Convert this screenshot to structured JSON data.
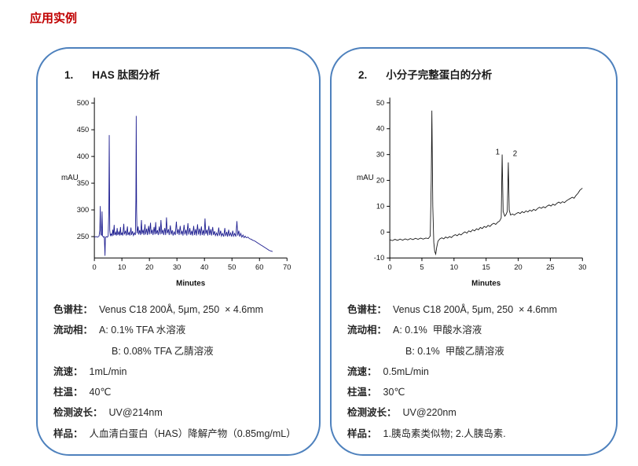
{
  "page": {
    "title": "应用实例",
    "title_color": "#c00000",
    "panel_border_color": "#4e81bd"
  },
  "panels": [
    {
      "number": "1.",
      "title": "HAS 肽图分析",
      "specs": [
        {
          "label": "色谱柱：",
          "value": "Venus C18 200Å, 5μm, 250  × 4.6mm",
          "indent": false
        },
        {
          "label": "流动相：",
          "value": "A: 0.1% TFA 水溶液",
          "indent": false
        },
        {
          "label": "",
          "value": "B: 0.08% TFA 乙腈溶液",
          "indent": true
        },
        {
          "label": "流速：",
          "value": "1mL/min",
          "indent": false
        },
        {
          "label": "柱温：",
          "value": "40℃",
          "indent": false
        },
        {
          "label": "检测波长：",
          "value": "UV@214nm",
          "indent": false
        },
        {
          "label": "样品：",
          "value": "人血清白蛋白（HAS）降解产物（0.85mg/mL）",
          "indent": false
        }
      ]
    },
    {
      "number": "2.",
      "title": "小分子完整蛋白的分析",
      "specs": [
        {
          "label": "色谱柱：",
          "value": "Venus C18 200Å, 5μm, 250  × 4.6mm",
          "indent": false
        },
        {
          "label": "流动相：",
          "value": "A: 0.1%  甲酸水溶液",
          "indent": false
        },
        {
          "label": "",
          "value": "B: 0.1%  甲酸乙腈溶液",
          "indent": true
        },
        {
          "label": "流速：",
          "value": "0.5mL/min",
          "indent": false
        },
        {
          "label": "柱温：",
          "value": "30℃",
          "indent": false
        },
        {
          "label": "检测波长：",
          "value": "UV@220nm",
          "indent": false
        },
        {
          "label": "样品：",
          "value": "1.胰岛素类似物; 2.人胰岛素.",
          "indent": false
        }
      ]
    }
  ],
  "chart_data": [
    {
      "type": "line",
      "title": "",
      "xlabel": "Minutes",
      "ylabel": "mAU",
      "xlim": [
        0,
        70
      ],
      "ylim": [
        210,
        510
      ],
      "xticks": [
        0,
        10,
        20,
        30,
        40,
        50,
        60,
        70
      ],
      "yticks": [
        250,
        300,
        350,
        400,
        450,
        500
      ],
      "grid": false,
      "line_color": "#1c1c8f",
      "points": [
        [
          0,
          249
        ],
        [
          0.6,
          250
        ],
        [
          1.2,
          249
        ],
        [
          1.7,
          251
        ],
        [
          2.0,
          262
        ],
        [
          2.15,
          307
        ],
        [
          2.3,
          255
        ],
        [
          2.6,
          252
        ],
        [
          2.8,
          297
        ],
        [
          3.0,
          251
        ],
        [
          3.3,
          249
        ],
        [
          3.6,
          250
        ],
        [
          3.85,
          214
        ],
        [
          4.0,
          248
        ],
        [
          4.3,
          250
        ],
        [
          4.7,
          249
        ],
        [
          5.0,
          251
        ],
        [
          5.25,
          300
        ],
        [
          5.4,
          440
        ],
        [
          5.6,
          262
        ],
        [
          5.8,
          252
        ],
        [
          6.1,
          255
        ],
        [
          6.4,
          251
        ],
        [
          6.7,
          263
        ],
        [
          6.9,
          252
        ],
        [
          7.2,
          272
        ],
        [
          7.4,
          253
        ],
        [
          7.7,
          258
        ],
        [
          8.0,
          252
        ],
        [
          8.3,
          266
        ],
        [
          8.5,
          253
        ],
        [
          8.9,
          259
        ],
        [
          9.2,
          252
        ],
        [
          9.5,
          268
        ],
        [
          9.7,
          253
        ],
        [
          10.0,
          257
        ],
        [
          10.3,
          252
        ],
        [
          10.7,
          274
        ],
        [
          10.9,
          254
        ],
        [
          11.3,
          261
        ],
        [
          11.6,
          252
        ],
        [
          12.0,
          269
        ],
        [
          12.2,
          253
        ],
        [
          12.6,
          258
        ],
        [
          12.9,
          252
        ],
        [
          13.3,
          267
        ],
        [
          13.5,
          253
        ],
        [
          13.9,
          260
        ],
        [
          14.2,
          252
        ],
        [
          14.6,
          257
        ],
        [
          14.9,
          253
        ],
        [
          15.1,
          320
        ],
        [
          15.2,
          476
        ],
        [
          15.35,
          300
        ],
        [
          15.5,
          256
        ],
        [
          15.9,
          269
        ],
        [
          16.1,
          254
        ],
        [
          16.5,
          262
        ],
        [
          16.8,
          253
        ],
        [
          17.1,
          281
        ],
        [
          17.3,
          255
        ],
        [
          17.7,
          263
        ],
        [
          18.0,
          253
        ],
        [
          18.4,
          273
        ],
        [
          18.6,
          254
        ],
        [
          19.0,
          265
        ],
        [
          19.3,
          253
        ],
        [
          19.7,
          270
        ],
        [
          20.0,
          254
        ],
        [
          20.4,
          276
        ],
        [
          20.6,
          255
        ],
        [
          21.0,
          263
        ],
        [
          21.3,
          253
        ],
        [
          21.7,
          268
        ],
        [
          22.0,
          254
        ],
        [
          22.3,
          277
        ],
        [
          22.5,
          255
        ],
        [
          22.9,
          262
        ],
        [
          23.2,
          253
        ],
        [
          23.6,
          269
        ],
        [
          23.9,
          254
        ],
        [
          24.2,
          281
        ],
        [
          24.5,
          255
        ],
        [
          24.9,
          263
        ],
        [
          25.2,
          253
        ],
        [
          25.6,
          266
        ],
        [
          25.9,
          253
        ],
        [
          26.2,
          286
        ],
        [
          26.5,
          256
        ],
        [
          26.9,
          264
        ],
        [
          27.2,
          253
        ],
        [
          27.6,
          271
        ],
        [
          27.9,
          254
        ],
        [
          28.3,
          262
        ],
        [
          28.6,
          252
        ],
        [
          29.0,
          259
        ],
        [
          29.4,
          253
        ],
        [
          29.8,
          278
        ],
        [
          30.1,
          255
        ],
        [
          30.5,
          264
        ],
        [
          30.8,
          253
        ],
        [
          31.2,
          270
        ],
        [
          31.5,
          254
        ],
        [
          31.9,
          261
        ],
        [
          32.2,
          252
        ],
        [
          32.6,
          272
        ],
        [
          32.9,
          254
        ],
        [
          33.3,
          263
        ],
        [
          33.6,
          252
        ],
        [
          34.0,
          275
        ],
        [
          34.3,
          254
        ],
        [
          34.7,
          266
        ],
        [
          35.0,
          253
        ],
        [
          35.4,
          261
        ],
        [
          35.7,
          252
        ],
        [
          36.1,
          270
        ],
        [
          36.4,
          253
        ],
        [
          36.8,
          264
        ],
        [
          37.1,
          252
        ],
        [
          37.5,
          273
        ],
        [
          37.8,
          254
        ],
        [
          38.2,
          265
        ],
        [
          38.5,
          252
        ],
        [
          38.9,
          269
        ],
        [
          39.2,
          253
        ],
        [
          39.6,
          262
        ],
        [
          39.9,
          252
        ],
        [
          40.2,
          284
        ],
        [
          40.5,
          255
        ],
        [
          40.9,
          263
        ],
        [
          41.2,
          252
        ],
        [
          41.6,
          270
        ],
        [
          41.9,
          253
        ],
        [
          42.3,
          264
        ],
        [
          42.6,
          252
        ],
        [
          43.0,
          268
        ],
        [
          43.3,
          253
        ],
        [
          43.7,
          260
        ],
        [
          44.0,
          252
        ],
        [
          44.4,
          257
        ],
        [
          44.8,
          251
        ],
        [
          45.2,
          267
        ],
        [
          45.5,
          252
        ],
        [
          45.9,
          261
        ],
        [
          46.2,
          251
        ],
        [
          46.6,
          256
        ],
        [
          47.0,
          250
        ],
        [
          47.4,
          266
        ],
        [
          47.7,
          251
        ],
        [
          48.1,
          259
        ],
        [
          48.4,
          250
        ],
        [
          48.8,
          263
        ],
        [
          49.1,
          251
        ],
        [
          49.5,
          257
        ],
        [
          49.9,
          250
        ],
        [
          50.3,
          261
        ],
        [
          50.6,
          251
        ],
        [
          51.0,
          256
        ],
        [
          51.4,
          250
        ],
        [
          51.8,
          279
        ],
        [
          52.1,
          252
        ],
        [
          52.5,
          261
        ],
        [
          52.8,
          250
        ],
        [
          53.2,
          256
        ],
        [
          53.6,
          249
        ],
        [
          54.0,
          253
        ],
        [
          54.4,
          248
        ],
        [
          54.8,
          251
        ],
        [
          55.2,
          248
        ],
        [
          55.8,
          249
        ],
        [
          56.4,
          246
        ],
        [
          57.0,
          245
        ],
        [
          57.6,
          243
        ],
        [
          58.2,
          242
        ],
        [
          58.8,
          240
        ],
        [
          59.4,
          238
        ],
        [
          60.0,
          236
        ],
        [
          60.6,
          234
        ],
        [
          61.2,
          232
        ],
        [
          61.8,
          230
        ],
        [
          62.4,
          228
        ],
        [
          63.0,
          226
        ],
        [
          63.6,
          224
        ],
        [
          64.2,
          223
        ],
        [
          64.8,
          222
        ]
      ]
    },
    {
      "type": "line",
      "title": "",
      "xlabel": "Minutes",
      "ylabel": "mAU",
      "xlim": [
        0,
        30
      ],
      "ylim": [
        -10,
        52
      ],
      "xticks": [
        0,
        5,
        10,
        15,
        20,
        25,
        30
      ],
      "yticks": [
        -10,
        0,
        10,
        20,
        30,
        40,
        50
      ],
      "grid": false,
      "line_color": "#141414",
      "annotations": [
        {
          "text": "1",
          "x": 16.8,
          "y": 30
        },
        {
          "text": "2",
          "x": 19.5,
          "y": 29.5
        }
      ],
      "points": [
        [
          0,
          -3.0
        ],
        [
          0.4,
          -3.3
        ],
        [
          0.8,
          -2.8
        ],
        [
          1.2,
          -3.2
        ],
        [
          1.6,
          -2.7
        ],
        [
          2.0,
          -3.1
        ],
        [
          2.4,
          -2.6
        ],
        [
          2.8,
          -3.0
        ],
        [
          3.2,
          -2.5
        ],
        [
          3.6,
          -2.9
        ],
        [
          4.0,
          -2.4
        ],
        [
          4.4,
          -2.8
        ],
        [
          4.8,
          -2.3
        ],
        [
          5.2,
          -2.7
        ],
        [
          5.6,
          -2.3
        ],
        [
          6.0,
          -2.5
        ],
        [
          6.3,
          -1.5
        ],
        [
          6.45,
          20
        ],
        [
          6.55,
          47
        ],
        [
          6.7,
          10
        ],
        [
          6.85,
          -4
        ],
        [
          7.0,
          -7.5
        ],
        [
          7.15,
          -8.5
        ],
        [
          7.3,
          -6
        ],
        [
          7.5,
          -3.5
        ],
        [
          7.8,
          -2.6
        ],
        [
          8.1,
          -2.2
        ],
        [
          8.4,
          -2.6
        ],
        [
          8.7,
          -1.9
        ],
        [
          9.0,
          -2.3
        ],
        [
          9.3,
          -1.7
        ],
        [
          9.6,
          -2.1
        ],
        [
          9.9,
          -1.4
        ],
        [
          10.2,
          -1.0
        ],
        [
          10.5,
          -1.4
        ],
        [
          10.8,
          -0.7
        ],
        [
          11.1,
          -1.1
        ],
        [
          11.4,
          -0.4
        ],
        [
          11.7,
          0.1
        ],
        [
          12.0,
          -0.4
        ],
        [
          12.3,
          0.5
        ],
        [
          12.6,
          0.1
        ],
        [
          12.9,
          0.9
        ],
        [
          13.2,
          0.5
        ],
        [
          13.5,
          1.3
        ],
        [
          13.8,
          0.9
        ],
        [
          14.1,
          1.8
        ],
        [
          14.4,
          1.4
        ],
        [
          14.7,
          2.2
        ],
        [
          15.0,
          1.8
        ],
        [
          15.3,
          2.6
        ],
        [
          15.6,
          2.2
        ],
        [
          15.9,
          3.0
        ],
        [
          16.2,
          3.4
        ],
        [
          16.5,
          3.0
        ],
        [
          16.8,
          3.8
        ],
        [
          17.1,
          4.3
        ],
        [
          17.35,
          5.5
        ],
        [
          17.5,
          30
        ],
        [
          17.65,
          8
        ],
        [
          17.9,
          6.2
        ],
        [
          18.1,
          6.8
        ],
        [
          18.3,
          8
        ],
        [
          18.45,
          27
        ],
        [
          18.6,
          8.5
        ],
        [
          18.8,
          6.6
        ],
        [
          19.1,
          7.0
        ],
        [
          19.4,
          6.6
        ],
        [
          19.7,
          7.2
        ],
        [
          20.0,
          7.6
        ],
        [
          20.3,
          7.2
        ],
        [
          20.6,
          7.9
        ],
        [
          20.9,
          7.5
        ],
        [
          21.2,
          8.2
        ],
        [
          21.5,
          7.8
        ],
        [
          21.8,
          8.5
        ],
        [
          22.1,
          8.1
        ],
        [
          22.4,
          8.8
        ],
        [
          22.7,
          8.4
        ],
        [
          23.0,
          9.1
        ],
        [
          23.3,
          9.6
        ],
        [
          23.6,
          9.2
        ],
        [
          23.9,
          9.8
        ],
        [
          24.2,
          9.4
        ],
        [
          24.5,
          10.1
        ],
        [
          24.8,
          10.5
        ],
        [
          25.1,
          10.1
        ],
        [
          25.4,
          10.8
        ],
        [
          25.7,
          10.4
        ],
        [
          26.0,
          11.1
        ],
        [
          26.3,
          11.6
        ],
        [
          26.6,
          11.2
        ],
        [
          26.9,
          11.8
        ],
        [
          27.2,
          11.4
        ],
        [
          27.5,
          12.1
        ],
        [
          27.8,
          12.6
        ],
        [
          28.1,
          13.0
        ],
        [
          28.4,
          13.5
        ],
        [
          28.7,
          13.1
        ],
        [
          29.0,
          14.2
        ],
        [
          29.3,
          15.0
        ],
        [
          29.6,
          16.2
        ],
        [
          30.0,
          17.0
        ]
      ]
    }
  ]
}
